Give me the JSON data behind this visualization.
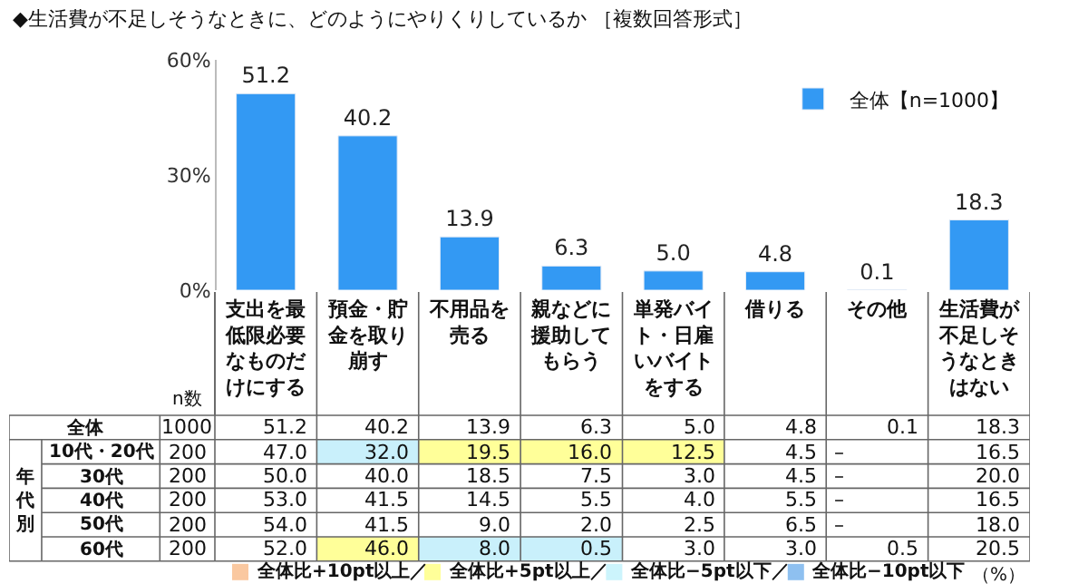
{
  "chart_data": [
    {
      "type": "bar",
      "title": "◆生活費が不足しそうなときに、どのようにやりくりしているか ［複数回答形式］",
      "categories": [
        "支出を最低限必要なものだけにする",
        "預金・貯金を取り崩す",
        "不用品を売る",
        "親などに援助してもらう",
        "単発バイト・日雇いバイトをする",
        "借りる",
        "その他",
        "生活費が不足しそうなときはない"
      ],
      "series": [
        {
          "name": "全体【n=1000】",
          "color": "#3399f3",
          "values": [
            51.2,
            40.2,
            13.9,
            6.3,
            5.0,
            4.8,
            0.1,
            18.3
          ],
          "value_labels": [
            "51.2",
            "40.2",
            "13.9",
            "6.3",
            "5.0",
            "4.8",
            "0.1",
            "18.3"
          ]
        }
      ],
      "ylim": [
        0,
        60
      ],
      "yticks": [
        {
          "value": 0,
          "label": "0%"
        },
        {
          "value": 30,
          "label": "30%"
        },
        {
          "value": 60,
          "label": "60%"
        }
      ],
      "legend": "top right"
    },
    {
      "type": "other",
      "y_categories": [
        "全体",
        "10代・20代",
        "30代",
        "40代",
        "50代",
        "60代"
      ],
      "cell_labels": [
        [
          "1000",
          "51.2",
          "40.2",
          "13.9",
          "6.3",
          "5.0",
          "4.8",
          "0.1",
          "18.3"
        ],
        [
          "200",
          "47.0",
          "32.0",
          "19.5",
          "16.0",
          "12.5",
          "4.5",
          "–",
          "16.5"
        ],
        [
          "200",
          "50.0",
          "40.0",
          "18.5",
          "7.5",
          "3.0",
          "4.5",
          "–",
          "20.0"
        ],
        [
          "200",
          "53.0",
          "41.5",
          "14.5",
          "5.5",
          "4.0",
          "5.5",
          "–",
          "16.5"
        ],
        [
          "200",
          "54.0",
          "41.5",
          "9.0",
          "2.0",
          "2.5",
          "6.5",
          "–",
          "18.0"
        ],
        [
          "200",
          "52.0",
          "46.0",
          "8.0",
          "0.5",
          "3.0",
          "3.0",
          "0.5",
          "20.5"
        ]
      ],
      "colors": [
        [
          null,
          null,
          null,
          null,
          null,
          null,
          null,
          null,
          null
        ],
        [
          null,
          null,
          "#c9f0fb",
          "#ffff99",
          "#ffff99",
          "#ffff99",
          null,
          null,
          null
        ],
        [
          null,
          null,
          null,
          null,
          null,
          null,
          null,
          null,
          null
        ],
        [
          null,
          null,
          null,
          null,
          null,
          null,
          null,
          null,
          null
        ],
        [
          null,
          null,
          null,
          null,
          null,
          null,
          null,
          null,
          null
        ],
        [
          null,
          null,
          "#ffff99",
          "#c9f0fb",
          "#c9f0fb",
          null,
          null,
          null,
          null
        ]
      ],
      "series": [
        {
          "name": "全体比+10pt以上／",
          "color": "#fac8a0"
        },
        {
          "name": "全体比+5pt以上／",
          "color": "#ffff99"
        },
        {
          "name": "全体比−5pt以下／",
          "color": "#ccf4fc"
        },
        {
          "name": "全体比−10pt以下",
          "color": "#8ec0f0"
        }
      ],
      "legend": "bottom",
      "annotations": [
        "n数",
        "年代別",
        "（%）"
      ]
    }
  ]
}
